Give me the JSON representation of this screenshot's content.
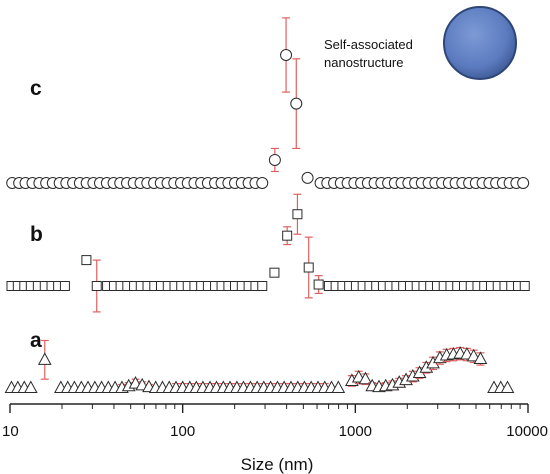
{
  "chart_data": {
    "type": "scatter",
    "title": "",
    "xlabel": "Size (nm)",
    "ylabel": "",
    "xscale": "log",
    "xlim": [
      10,
      10000
    ],
    "x_ticks": [
      "10",
      "100",
      "1000",
      "10000"
    ],
    "grid": false,
    "legend": "none",
    "annotation": "Self-associated\nnanostructure",
    "colors": {
      "marker": "#2b2b2b",
      "errorbar": "#e06060",
      "sphere": "#5b7bbf"
    },
    "panels": [
      {
        "label": "a",
        "marker": "triangle",
        "baseline": 0,
        "ylim": [
          0,
          1
        ],
        "points": [
          {
            "x": 10.2,
            "y": 0
          },
          {
            "x": 11.1,
            "y": 0
          },
          {
            "x": 12.1,
            "y": 0
          },
          {
            "x": 13.2,
            "y": 0
          },
          {
            "x": 15.9,
            "y": 0.32,
            "err": 0.22
          },
          {
            "x": 19.7,
            "y": 0
          },
          {
            "x": 21.6,
            "y": 0
          },
          {
            "x": 23.6,
            "y": 0
          },
          {
            "x": 25.9,
            "y": 0
          },
          {
            "x": 28.3,
            "y": 0
          },
          {
            "x": 31,
            "y": 0
          },
          {
            "x": 33.9,
            "y": 0
          },
          {
            "x": 37.1,
            "y": 0
          },
          {
            "x": 40.6,
            "y": 0
          },
          {
            "x": 44.5,
            "y": 0,
            "err": 0.04
          },
          {
            "x": 48.7,
            "y": 0.02,
            "err": 0.04
          },
          {
            "x": 53.3,
            "y": 0.05,
            "err": 0.05
          },
          {
            "x": 58.3,
            "y": 0.03,
            "err": 0.04
          },
          {
            "x": 63.8,
            "y": 0.01,
            "err": 0.03
          },
          {
            "x": 69.8,
            "y": 0
          },
          {
            "x": 76.4,
            "y": 0
          },
          {
            "x": 83.6,
            "y": 0
          },
          {
            "x": 91.5,
            "y": 0,
            "err": 0.05
          },
          {
            "x": 100,
            "y": 0,
            "err": 0.05
          },
          {
            "x": 110,
            "y": 0,
            "err": 0.05
          },
          {
            "x": 120,
            "y": 0,
            "err": 0.05
          },
          {
            "x": 131,
            "y": 0,
            "err": 0.05
          },
          {
            "x": 144,
            "y": 0,
            "err": 0.05
          },
          {
            "x": 157,
            "y": 0,
            "err": 0.05
          },
          {
            "x": 172,
            "y": 0,
            "err": 0.05
          },
          {
            "x": 188,
            "y": 0,
            "err": 0.05
          },
          {
            "x": 206,
            "y": 0,
            "err": 0.05
          },
          {
            "x": 225,
            "y": 0,
            "err": 0.05
          },
          {
            "x": 247,
            "y": 0,
            "err": 0.05
          },
          {
            "x": 270,
            "y": 0,
            "err": 0.05
          },
          {
            "x": 295,
            "y": 0,
            "err": 0.05
          },
          {
            "x": 323,
            "y": 0,
            "err": 0.05
          },
          {
            "x": 354,
            "y": 0,
            "err": 0.05
          },
          {
            "x": 387,
            "y": 0,
            "err": 0.05
          },
          {
            "x": 424,
            "y": 0,
            "err": 0.05
          },
          {
            "x": 464,
            "y": 0,
            "err": 0.05
          },
          {
            "x": 507,
            "y": 0,
            "err": 0.05
          },
          {
            "x": 555,
            "y": 0,
            "err": 0.05
          },
          {
            "x": 608,
            "y": 0,
            "err": 0.05
          },
          {
            "x": 665,
            "y": 0,
            "err": 0.05
          },
          {
            "x": 728,
            "y": 0
          },
          {
            "x": 797,
            "y": 0
          },
          {
            "x": 955,
            "y": 0.08,
            "err": 0.06
          },
          {
            "x": 1046,
            "y": 0.12,
            "err": 0.07
          },
          {
            "x": 1144,
            "y": 0.1,
            "err": 0.06
          },
          {
            "x": 1252,
            "y": 0.02,
            "err": 0.04
          },
          {
            "x": 1371,
            "y": 0.01,
            "err": 0.04
          },
          {
            "x": 1500,
            "y": 0.02,
            "err": 0.04
          },
          {
            "x": 1641,
            "y": 0.03,
            "err": 0.05
          },
          {
            "x": 1796,
            "y": 0.06,
            "err": 0.05
          },
          {
            "x": 1966,
            "y": 0.09,
            "err": 0.05
          },
          {
            "x": 2152,
            "y": 0.13,
            "err": 0.06
          },
          {
            "x": 2355,
            "y": 0.17,
            "err": 0.06
          },
          {
            "x": 2577,
            "y": 0.23,
            "err": 0.06
          },
          {
            "x": 2820,
            "y": 0.28,
            "err": 0.07
          },
          {
            "x": 3087,
            "y": 0.34,
            "err": 0.07
          },
          {
            "x": 3378,
            "y": 0.37,
            "err": 0.07
          },
          {
            "x": 3697,
            "y": 0.38,
            "err": 0.07
          },
          {
            "x": 4046,
            "y": 0.39,
            "err": 0.07
          },
          {
            "x": 4428,
            "y": 0.38,
            "err": 0.07
          },
          {
            "x": 4846,
            "y": 0.36,
            "err": 0.07
          },
          {
            "x": 5304,
            "y": 0.33,
            "err": 0.07
          },
          {
            "x": 6353,
            "y": 0
          },
          {
            "x": 6953,
            "y": 0
          },
          {
            "x": 7609,
            "y": 0
          }
        ]
      },
      {
        "label": "b",
        "marker": "square",
        "baseline": 0,
        "ylim": [
          0,
          1
        ],
        "points": [
          {
            "x": 10.2,
            "y": 0
          },
          {
            "x": 11.1,
            "y": 0
          },
          {
            "x": 12.1,
            "y": 0
          },
          {
            "x": 13.2,
            "y": 0
          },
          {
            "x": 14.5,
            "y": 0
          },
          {
            "x": 15.9,
            "y": 0
          },
          {
            "x": 17.4,
            "y": 0
          },
          {
            "x": 19,
            "y": 0
          },
          {
            "x": 20.8,
            "y": 0
          },
          {
            "x": 27.7,
            "y": 0.35
          },
          {
            "x": 31.8,
            "y": 0,
            "err": 0.35
          },
          {
            "x": 36.5,
            "y": 0
          },
          {
            "x": 40,
            "y": 0
          },
          {
            "x": 43.7,
            "y": 0
          },
          {
            "x": 47.8,
            "y": 0
          },
          {
            "x": 52.3,
            "y": 0
          },
          {
            "x": 57.2,
            "y": 0
          },
          {
            "x": 62.6,
            "y": 0
          },
          {
            "x": 68.5,
            "y": 0
          },
          {
            "x": 74.9,
            "y": 0
          },
          {
            "x": 82,
            "y": 0
          },
          {
            "x": 89.7,
            "y": 0
          },
          {
            "x": 98.1,
            "y": 0
          },
          {
            "x": 107,
            "y": 0
          },
          {
            "x": 117,
            "y": 0
          },
          {
            "x": 128,
            "y": 0
          },
          {
            "x": 140,
            "y": 0
          },
          {
            "x": 154,
            "y": 0
          },
          {
            "x": 168,
            "y": 0
          },
          {
            "x": 184,
            "y": 0
          },
          {
            "x": 201,
            "y": 0
          },
          {
            "x": 220,
            "y": 0
          },
          {
            "x": 241,
            "y": 0
          },
          {
            "x": 264,
            "y": 0
          },
          {
            "x": 289,
            "y": 0
          },
          {
            "x": 340,
            "y": 0.18
          },
          {
            "x": 403,
            "y": 0.68,
            "err": 0.12
          },
          {
            "x": 462,
            "y": 0.97,
            "err": 0.27
          },
          {
            "x": 537,
            "y": 0.25,
            "err": 0.41
          },
          {
            "x": 613,
            "y": 0.02,
            "err": 0.12
          },
          {
            "x": 703,
            "y": 0
          },
          {
            "x": 769,
            "y": 0
          },
          {
            "x": 842,
            "y": 0
          },
          {
            "x": 921,
            "y": 0
          },
          {
            "x": 1008,
            "y": 0
          },
          {
            "x": 1103,
            "y": 0
          },
          {
            "x": 1207,
            "y": 0
          },
          {
            "x": 1321,
            "y": 0
          },
          {
            "x": 1445,
            "y": 0
          },
          {
            "x": 1581,
            "y": 0
          },
          {
            "x": 1730,
            "y": 0
          },
          {
            "x": 1893,
            "y": 0
          },
          {
            "x": 2072,
            "y": 0
          },
          {
            "x": 2267,
            "y": 0
          },
          {
            "x": 2481,
            "y": 0
          },
          {
            "x": 2714,
            "y": 0
          },
          {
            "x": 2970,
            "y": 0
          },
          {
            "x": 3250,
            "y": 0
          },
          {
            "x": 3556,
            "y": 0
          },
          {
            "x": 3891,
            "y": 0
          },
          {
            "x": 4258,
            "y": 0
          },
          {
            "x": 4659,
            "y": 0
          },
          {
            "x": 5098,
            "y": 0
          },
          {
            "x": 5578,
            "y": 0
          },
          {
            "x": 6104,
            "y": 0
          },
          {
            "x": 6679,
            "y": 0
          },
          {
            "x": 7308,
            "y": 0
          },
          {
            "x": 7997,
            "y": 0
          },
          {
            "x": 8750,
            "y": 0
          },
          {
            "x": 9575,
            "y": 0
          }
        ]
      },
      {
        "label": "c",
        "marker": "circle",
        "baseline": 0,
        "ylim": [
          0,
          1
        ],
        "points": [
          {
            "x": 10.3,
            "y": 0
          },
          {
            "x": 11.3,
            "y": 0
          },
          {
            "x": 12.3,
            "y": 0
          },
          {
            "x": 13.5,
            "y": 0
          },
          {
            "x": 14.8,
            "y": 0
          },
          {
            "x": 16.2,
            "y": 0
          },
          {
            "x": 17.7,
            "y": 0
          },
          {
            "x": 19.4,
            "y": 0
          },
          {
            "x": 21.2,
            "y": 0
          },
          {
            "x": 23.2,
            "y": 0
          },
          {
            "x": 25.4,
            "y": 0
          },
          {
            "x": 27.8,
            "y": 0
          },
          {
            "x": 30.4,
            "y": 0
          },
          {
            "x": 33.2,
            "y": 0
          },
          {
            "x": 36.4,
            "y": 0
          },
          {
            "x": 39.8,
            "y": 0
          },
          {
            "x": 43.5,
            "y": 0
          },
          {
            "x": 47.6,
            "y": 0
          },
          {
            "x": 52.1,
            "y": 0
          },
          {
            "x": 57,
            "y": 0
          },
          {
            "x": 62.4,
            "y": 0
          },
          {
            "x": 68.3,
            "y": 0
          },
          {
            "x": 74.7,
            "y": 0
          },
          {
            "x": 81.7,
            "y": 0
          },
          {
            "x": 89.4,
            "y": 0
          },
          {
            "x": 97.8,
            "y": 0
          },
          {
            "x": 107,
            "y": 0
          },
          {
            "x": 117,
            "y": 0
          },
          {
            "x": 128,
            "y": 0
          },
          {
            "x": 140,
            "y": 0
          },
          {
            "x": 154,
            "y": 0
          },
          {
            "x": 168,
            "y": 0
          },
          {
            "x": 184,
            "y": 0
          },
          {
            "x": 201,
            "y": 0
          },
          {
            "x": 220,
            "y": 0
          },
          {
            "x": 241,
            "y": 0
          },
          {
            "x": 264,
            "y": 0
          },
          {
            "x": 289,
            "y": 0
          },
          {
            "x": 342,
            "y": 0.18,
            "err": 0.09
          },
          {
            "x": 397,
            "y": 1.0,
            "err": 0.29
          },
          {
            "x": 455,
            "y": 0.62,
            "err": 0.35
          },
          {
            "x": 529,
            "y": 0.04,
            "err": 0.03
          },
          {
            "x": 629,
            "y": 0
          },
          {
            "x": 688,
            "y": 0
          },
          {
            "x": 753,
            "y": 0
          },
          {
            "x": 824,
            "y": 0
          },
          {
            "x": 902,
            "y": 0
          },
          {
            "x": 987,
            "y": 0
          },
          {
            "x": 1080,
            "y": 0
          },
          {
            "x": 1182,
            "y": 0
          },
          {
            "x": 1293,
            "y": 0
          },
          {
            "x": 1415,
            "y": 0
          },
          {
            "x": 1548,
            "y": 0
          },
          {
            "x": 1694,
            "y": 0
          },
          {
            "x": 1853,
            "y": 0
          },
          {
            "x": 2028,
            "y": 0
          },
          {
            "x": 2219,
            "y": 0
          },
          {
            "x": 2428,
            "y": 0
          },
          {
            "x": 2657,
            "y": 0
          },
          {
            "x": 2907,
            "y": 0
          },
          {
            "x": 3181,
            "y": 0
          },
          {
            "x": 3481,
            "y": 0
          },
          {
            "x": 3809,
            "y": 0
          },
          {
            "x": 4168,
            "y": 0
          },
          {
            "x": 4561,
            "y": 0
          },
          {
            "x": 4990,
            "y": 0
          },
          {
            "x": 5460,
            "y": 0
          },
          {
            "x": 5975,
            "y": 0
          },
          {
            "x": 6538,
            "y": 0
          },
          {
            "x": 7154,
            "y": 0
          },
          {
            "x": 7828,
            "y": 0
          },
          {
            "x": 8566,
            "y": 0
          },
          {
            "x": 9373,
            "y": 0
          }
        ]
      }
    ]
  }
}
